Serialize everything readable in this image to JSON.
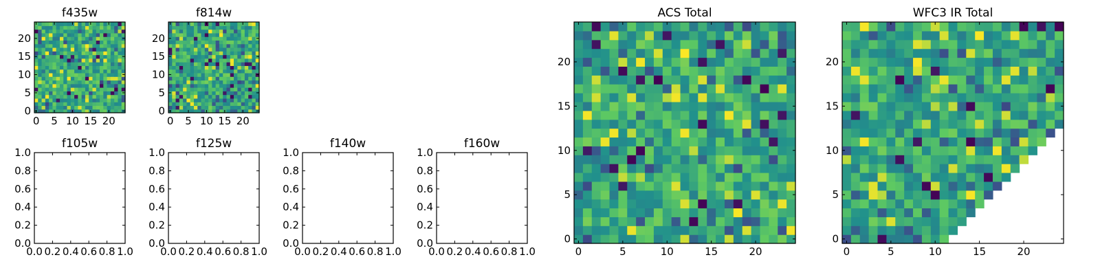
{
  "figure": {
    "colormap": "viridis",
    "colormap_stops": [
      "#440154",
      "#3b528b",
      "#21918c",
      "#5ec962",
      "#fde725"
    ],
    "frame_color": "#000000",
    "background": "#ffffff"
  },
  "chart_data": [
    {
      "id": "f435w",
      "type": "heatmap",
      "title": "f435w",
      "grid_size": [
        25,
        25
      ],
      "xlim": [
        -0.5,
        24.5
      ],
      "ylim": [
        -0.5,
        24.5
      ],
      "xticks": [
        "0",
        "5",
        "10",
        "15",
        "20"
      ],
      "yticks": [
        "0",
        "5",
        "10",
        "15",
        "20"
      ],
      "value_range": [
        0,
        1
      ],
      "note_values": "per-pixel intensities are noise-like; cell colours reproduced approximately",
      "seed": 11
    },
    {
      "id": "f814w",
      "type": "heatmap",
      "title": "f814w",
      "grid_size": [
        25,
        25
      ],
      "xlim": [
        -0.5,
        24.5
      ],
      "ylim": [
        -0.5,
        24.5
      ],
      "xticks": [
        "0",
        "5",
        "10",
        "15",
        "20"
      ],
      "yticks": [
        "0",
        "5",
        "10",
        "15",
        "20"
      ],
      "value_range": [
        0,
        1
      ],
      "seed": 23
    },
    {
      "id": "f105w",
      "type": "empty",
      "title": "f105w",
      "xlim": [
        0,
        1
      ],
      "ylim": [
        0,
        1
      ],
      "xticks": [
        "0.0",
        "0.2",
        "0.4",
        "0.6",
        "0.8",
        "1.0"
      ],
      "yticks": [
        "0.0",
        "0.2",
        "0.4",
        "0.6",
        "0.8",
        "1.0"
      ]
    },
    {
      "id": "f125w",
      "type": "empty",
      "title": "f125w",
      "xlim": [
        0,
        1
      ],
      "ylim": [
        0,
        1
      ],
      "xticks": [
        "0.0",
        "0.2",
        "0.4",
        "0.6",
        "0.8",
        "1.0"
      ],
      "yticks": [
        "0.0",
        "0.2",
        "0.4",
        "0.6",
        "0.8",
        "1.0"
      ]
    },
    {
      "id": "f140w",
      "type": "empty",
      "title": "f140w",
      "xlim": [
        0,
        1
      ],
      "ylim": [
        0,
        1
      ],
      "xticks": [
        "0.0",
        "0.2",
        "0.4",
        "0.6",
        "0.8",
        "1.0"
      ],
      "yticks": [
        "0.0",
        "0.2",
        "0.4",
        "0.6",
        "0.8",
        "1.0"
      ]
    },
    {
      "id": "f160w",
      "type": "empty",
      "title": "f160w",
      "xlim": [
        0,
        1
      ],
      "ylim": [
        0,
        1
      ],
      "xticks": [
        "0.0",
        "0.2",
        "0.4",
        "0.6",
        "0.8",
        "1.0"
      ],
      "yticks": [
        "0.0",
        "0.2",
        "0.4",
        "0.6",
        "0.8",
        "1.0"
      ]
    },
    {
      "id": "acs_total",
      "type": "heatmap",
      "title": "ACS Total",
      "grid_size": [
        25,
        25
      ],
      "xlim": [
        -0.5,
        24.5
      ],
      "ylim": [
        -0.5,
        24.5
      ],
      "xticks": [
        "0",
        "5",
        "10",
        "15",
        "20"
      ],
      "yticks": [
        "0",
        "5",
        "10",
        "15",
        "20"
      ],
      "value_range": [
        0,
        1
      ],
      "seed": 37
    },
    {
      "id": "wfc3_ir_total",
      "type": "heatmap",
      "title": "WFC3 IR Total",
      "grid_size": [
        25,
        25
      ],
      "xlim": [
        -0.5,
        24.5
      ],
      "ylim": [
        -0.5,
        24.5
      ],
      "xticks": [
        "0",
        "5",
        "10",
        "15",
        "20"
      ],
      "yticks": [
        "0",
        "5",
        "10",
        "15",
        "20"
      ],
      "value_range": [
        0,
        1
      ],
      "masked_region": "lower-right triangle left blank (white)",
      "mask_rule": "pixel blank when column > row + 11",
      "seed": 53
    }
  ]
}
